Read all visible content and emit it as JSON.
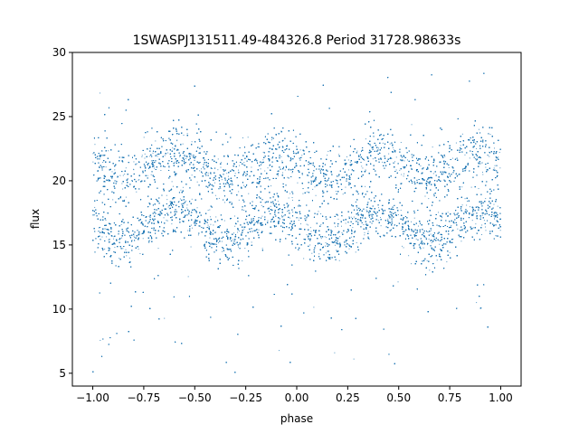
{
  "chart_data": {
    "type": "scatter",
    "title": "1SWASPJ131511.49-484326.8 Period 31728.98633s",
    "xlabel": "phase",
    "ylabel": "flux",
    "xlim": [
      -1.1,
      1.1
    ],
    "ylim": [
      4,
      30
    ],
    "xticks": [
      -1.0,
      -0.75,
      -0.5,
      -0.25,
      0.0,
      0.25,
      0.5,
      0.75,
      1.0
    ],
    "xtick_labels": [
      "−1.00",
      "−0.75",
      "−0.50",
      "−0.25",
      "0.00",
      "0.25",
      "0.50",
      "0.75",
      "1.00"
    ],
    "yticks": [
      5,
      10,
      15,
      20,
      25,
      30
    ],
    "ytick_labels": [
      "5",
      "10",
      "15",
      "20",
      "25",
      "30"
    ],
    "grid": false,
    "marker_color": "#1f77b4",
    "series": [
      {
        "description_phase_min": -1.0,
        "description_phase_max": 1.0,
        "lower_band_mean_flux": 16.5,
        "lower_band_amplitude": 1.2,
        "upper_band_mean_flux": 21.2,
        "upper_band_amplitude": 1.0,
        "cycles_per_unit_phase": 2,
        "trough_phases": [
          -0.85,
          -0.35,
          0.15,
          0.65
        ],
        "flux_range": [
          5,
          28.5
        ]
      }
    ]
  }
}
